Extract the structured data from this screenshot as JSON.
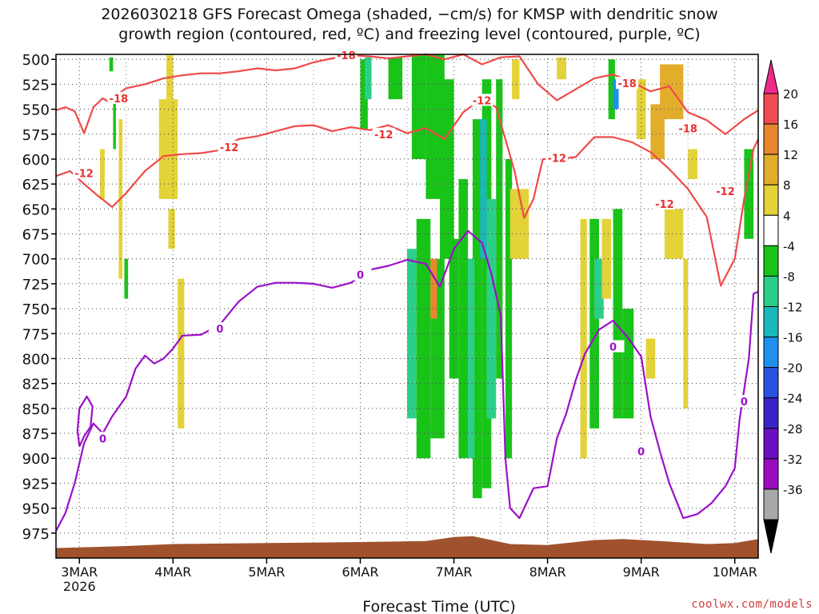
{
  "title_line1": "2026030218 GFS Forecast Omega (shaded, −cm/s) for KMSP with dendritic snow",
  "title_line2": "growth region (contoured, red, ºC) and freezing level (contoured, purple, ºC)",
  "credit": "coolwx.com/models",
  "chart_data": {
    "type": "heatmap",
    "xlabel": "Forecast Time (UTC)",
    "ylabel": "",
    "x_ticks": [
      "3MAR",
      "4MAR",
      "5MAR",
      "6MAR",
      "7MAR",
      "8MAR",
      "9MAR",
      "10MAR"
    ],
    "x_tick_year": "2026",
    "x_range_days": [
      -0.25,
      7.25
    ],
    "y_ticks": [
      500,
      525,
      550,
      575,
      600,
      625,
      650,
      675,
      700,
      725,
      750,
      775,
      800,
      825,
      850,
      875,
      900,
      925,
      950,
      975
    ],
    "y_range_hpa": [
      495,
      1000
    ],
    "grid": true,
    "colorbar": {
      "tick_labels": [
        "20",
        "16",
        "12",
        "8",
        "4",
        "-4",
        "-8",
        "-12",
        "-16",
        "-20",
        "-24",
        "-28",
        "-32",
        "-36"
      ],
      "colors": [
        "#f04a52",
        "#e8872e",
        "#e3ad2c",
        "#e3d238",
        "#ffffff",
        "#19c419",
        "#2ccf8a",
        "#1ab8b8",
        "#1e90ee",
        "#2a52e0",
        "#3a23c8",
        "#6a10c0",
        "#9a0cc0",
        "#a8a8a8"
      ],
      "above_color": "#ee2a8a",
      "below_color": "#000000"
    },
    "red_contours": [
      {
        "label": "-18",
        "points": [
          [
            -0.25,
            551
          ],
          [
            -0.15,
            548
          ],
          [
            -0.05,
            552
          ],
          [
            0.05,
            574
          ],
          [
            0.15,
            548
          ],
          [
            0.25,
            539
          ],
          [
            0.3,
            542
          ],
          [
            0.5,
            529
          ],
          [
            0.7,
            525
          ],
          [
            0.9,
            519
          ],
          [
            1.1,
            516
          ],
          [
            1.3,
            514
          ],
          [
            1.5,
            514
          ],
          [
            1.7,
            512
          ],
          [
            1.9,
            509
          ],
          [
            2.1,
            511
          ],
          [
            2.3,
            509
          ],
          [
            2.5,
            503
          ],
          [
            2.7,
            499
          ],
          [
            2.9,
            496
          ],
          [
            3.1,
            497
          ],
          [
            3.3,
            499
          ],
          [
            3.5,
            497
          ],
          [
            3.7,
            495
          ],
          [
            3.9,
            500
          ],
          [
            4.1,
            495
          ],
          [
            4.3,
            505
          ],
          [
            4.5,
            498
          ],
          [
            4.7,
            497
          ],
          [
            4.9,
            525
          ],
          [
            5.1,
            541
          ],
          [
            5.3,
            530
          ],
          [
            5.5,
            519
          ],
          [
            5.7,
            515
          ],
          [
            5.9,
            523
          ],
          [
            6.1,
            532
          ],
          [
            6.3,
            527
          ],
          [
            6.5,
            553
          ],
          [
            6.7,
            561
          ],
          [
            6.9,
            575
          ],
          [
            7.1,
            560
          ],
          [
            7.25,
            551
          ]
        ]
      },
      {
        "label": "-12",
        "points": [
          [
            -0.25,
            617
          ],
          [
            -0.1,
            612
          ],
          [
            0.05,
            625
          ],
          [
            0.2,
            637
          ],
          [
            0.35,
            648
          ],
          [
            0.5,
            634
          ],
          [
            0.7,
            612
          ],
          [
            0.9,
            597
          ],
          [
            1.1,
            595
          ],
          [
            1.3,
            594
          ],
          [
            1.5,
            591
          ],
          [
            1.7,
            580
          ],
          [
            1.9,
            577
          ],
          [
            2.1,
            572
          ],
          [
            2.3,
            567
          ],
          [
            2.5,
            566
          ],
          [
            2.7,
            572
          ],
          [
            2.9,
            568
          ],
          [
            3.1,
            571
          ],
          [
            3.3,
            566
          ],
          [
            3.5,
            574
          ],
          [
            3.7,
            569
          ],
          [
            3.9,
            580
          ],
          [
            4.1,
            553
          ],
          [
            4.3,
            539
          ],
          [
            4.45,
            548
          ],
          [
            4.55,
            580
          ],
          [
            4.65,
            613
          ],
          [
            4.75,
            659
          ],
          [
            4.85,
            640
          ],
          [
            4.95,
            600
          ],
          [
            5.1,
            600
          ],
          [
            5.3,
            598
          ],
          [
            5.5,
            578
          ],
          [
            5.7,
            578
          ],
          [
            5.9,
            583
          ],
          [
            6.1,
            593
          ],
          [
            6.3,
            610
          ],
          [
            6.5,
            630
          ],
          [
            6.7,
            658
          ],
          [
            6.85,
            727
          ],
          [
            7.0,
            700
          ],
          [
            7.1,
            640
          ],
          [
            7.2,
            590
          ],
          [
            7.25,
            580
          ]
        ]
      }
    ],
    "purple_contours": [
      {
        "label": "0",
        "points": [
          [
            -0.25,
            973
          ],
          [
            -0.15,
            955
          ],
          [
            -0.05,
            925
          ],
          [
            0.05,
            885
          ],
          [
            0.15,
            865
          ],
          [
            0.25,
            875
          ],
          [
            0.35,
            858
          ],
          [
            0.5,
            838
          ],
          [
            0.6,
            810
          ],
          [
            0.7,
            797
          ],
          [
            0.8,
            805
          ],
          [
            0.9,
            800
          ],
          [
            1.0,
            790
          ],
          [
            1.1,
            777
          ],
          [
            1.3,
            776
          ],
          [
            1.5,
            766
          ],
          [
            1.7,
            743
          ],
          [
            1.9,
            728
          ],
          [
            2.1,
            724
          ],
          [
            2.3,
            724
          ],
          [
            2.5,
            725
          ],
          [
            2.7,
            729
          ],
          [
            2.9,
            724
          ],
          [
            3.1,
            711
          ],
          [
            3.3,
            707
          ],
          [
            3.5,
            701
          ],
          [
            3.7,
            705
          ],
          [
            3.85,
            728
          ],
          [
            4.0,
            690
          ],
          [
            4.15,
            672
          ],
          [
            4.3,
            684
          ],
          [
            4.4,
            715
          ],
          [
            4.5,
            757
          ],
          [
            4.55,
            900
          ],
          [
            4.6,
            950
          ],
          [
            4.7,
            960
          ],
          [
            4.85,
            930
          ],
          [
            5.0,
            928
          ],
          [
            5.1,
            880
          ],
          [
            5.2,
            855
          ],
          [
            5.3,
            822
          ],
          [
            5.4,
            795
          ],
          [
            5.55,
            771
          ],
          [
            5.7,
            762
          ],
          [
            5.85,
            778
          ],
          [
            6.0,
            798
          ],
          [
            6.1,
            858
          ],
          [
            6.2,
            893
          ],
          [
            6.3,
            925
          ],
          [
            6.45,
            960
          ],
          [
            6.6,
            956
          ],
          [
            6.75,
            945
          ],
          [
            6.9,
            928
          ],
          [
            7.0,
            910
          ],
          [
            7.05,
            862
          ],
          [
            7.15,
            800
          ],
          [
            7.2,
            735
          ],
          [
            7.25,
            733
          ]
        ]
      },
      {
        "label": "",
        "points": [
          [
            0.0,
            888
          ],
          [
            -0.02,
            872
          ],
          [
            0.0,
            850
          ],
          [
            0.08,
            838
          ],
          [
            0.14,
            848
          ],
          [
            0.12,
            868
          ],
          [
            0.05,
            878
          ],
          [
            0.0,
            888
          ]
        ]
      }
    ],
    "terrain": {
      "color": "#a0522d",
      "top_hpa": 990
    }
  }
}
